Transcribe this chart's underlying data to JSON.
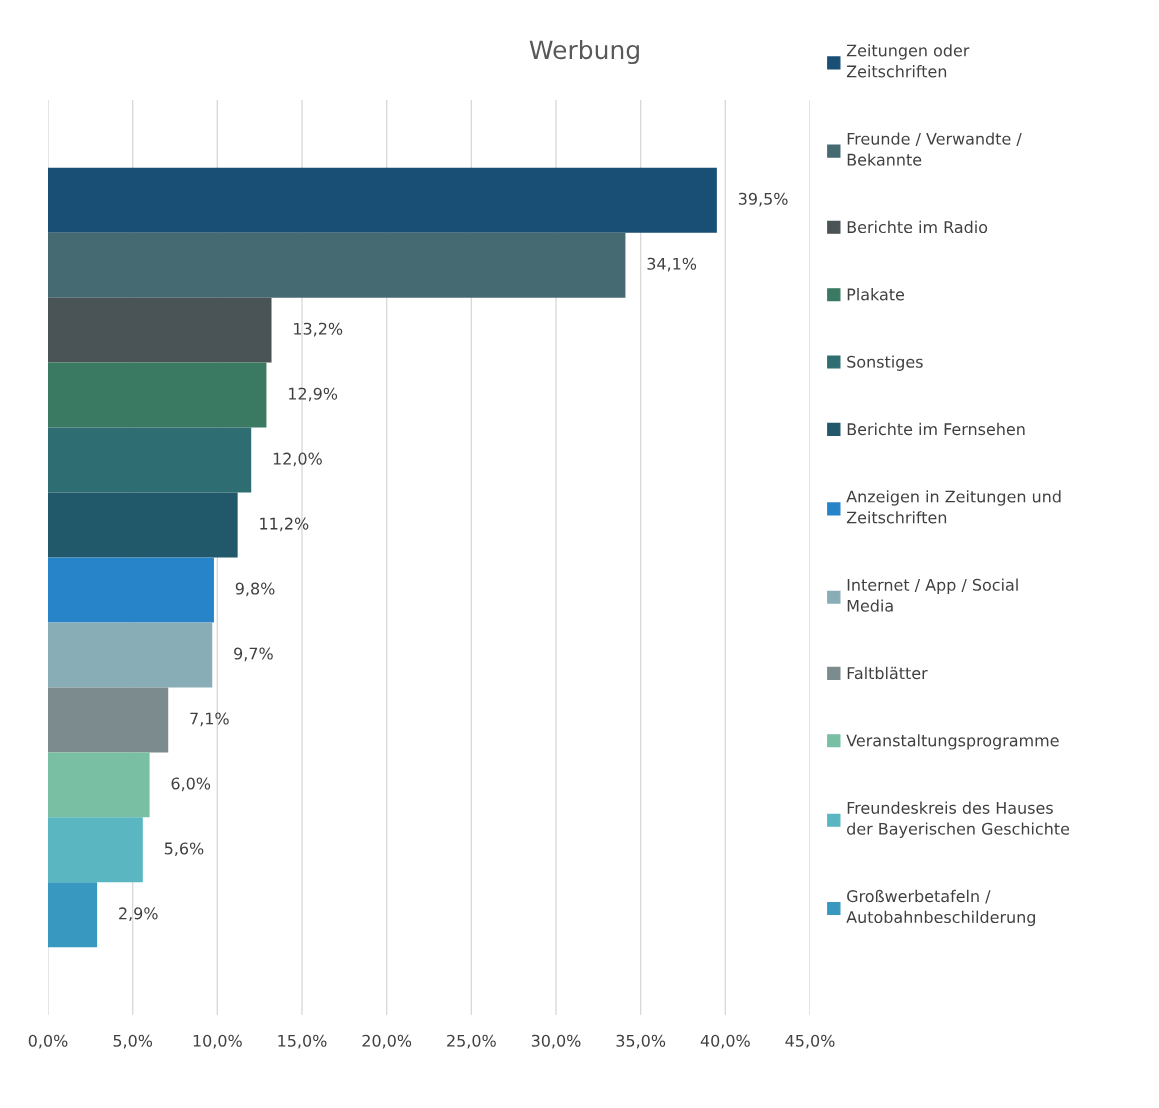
{
  "chart_data": {
    "type": "bar",
    "orientation": "horizontal",
    "title": "Werbung",
    "categories": [
      null
    ],
    "series": [
      {
        "name": "Zeitungen oder Zeitschriften",
        "color": "#1a4f75",
        "values": [
          39.5
        ],
        "value_labels": [
          "39,5%"
        ]
      },
      {
        "name": "Freunde / Verwandte / Bekannte",
        "color": "#466a72",
        "values": [
          34.1
        ],
        "value_labels": [
          "34,1%"
        ]
      },
      {
        "name": "Berichte im Radio",
        "color": "#4a5355",
        "values": [
          13.2
        ],
        "value_labels": [
          "13,2%"
        ]
      },
      {
        "name": "Plakate",
        "color": "#3b7a62",
        "values": [
          12.9
        ],
        "value_labels": [
          "12,9%"
        ]
      },
      {
        "name": "Sonstiges",
        "color": "#2e6e72",
        "values": [
          12.0
        ],
        "value_labels": [
          "12,0%"
        ]
      },
      {
        "name": "Berichte im Fernsehen",
        "color": "#21596b",
        "values": [
          11.2
        ],
        "value_labels": [
          "11,2%"
        ]
      },
      {
        "name": "Anzeigen in Zeitungen und Zeitschriften",
        "color": "#2784c8",
        "values": [
          9.8
        ],
        "value_labels": [
          "9,8%"
        ]
      },
      {
        "name": "Internet / App / Social Media",
        "color": "#88adb6",
        "values": [
          9.7
        ],
        "value_labels": [
          "9,7%"
        ]
      },
      {
        "name": "Faltblätter",
        "color": "#7c8b8d",
        "values": [
          7.1
        ],
        "value_labels": [
          "7,1%"
        ]
      },
      {
        "name": "Veranstaltungsprogramme",
        "color": "#78bfa4",
        "values": [
          6.0
        ],
        "value_labels": [
          "6,0%"
        ]
      },
      {
        "name": "Freundeskreis des Hauses der Bayerischen Geschichte",
        "color": "#5ab6c0",
        "values": [
          5.6
        ],
        "value_labels": [
          "5,6%"
        ]
      },
      {
        "name": "Großwerbetafeln / Autobahnbeschilderung",
        "color": "#3898bf",
        "values": [
          2.9
        ],
        "value_labels": [
          "2,9%"
        ]
      }
    ],
    "xlim": [
      0,
      45
    ],
    "xticks": [
      {
        "value": 0,
        "label": "0,0%"
      },
      {
        "value": 5,
        "label": "5,0%"
      },
      {
        "value": 10,
        "label": "10,0%"
      },
      {
        "value": 15,
        "label": "15,0%"
      },
      {
        "value": 20,
        "label": "20,0%"
      },
      {
        "value": 25,
        "label": "25,0%"
      },
      {
        "value": 30,
        "label": "30,0%"
      },
      {
        "value": 35,
        "label": "35,0%"
      },
      {
        "value": 40,
        "label": "40,0%"
      },
      {
        "value": 45,
        "label": "45,0%"
      }
    ],
    "grid": "x",
    "legend": "right",
    "tick_labels": "x"
  }
}
